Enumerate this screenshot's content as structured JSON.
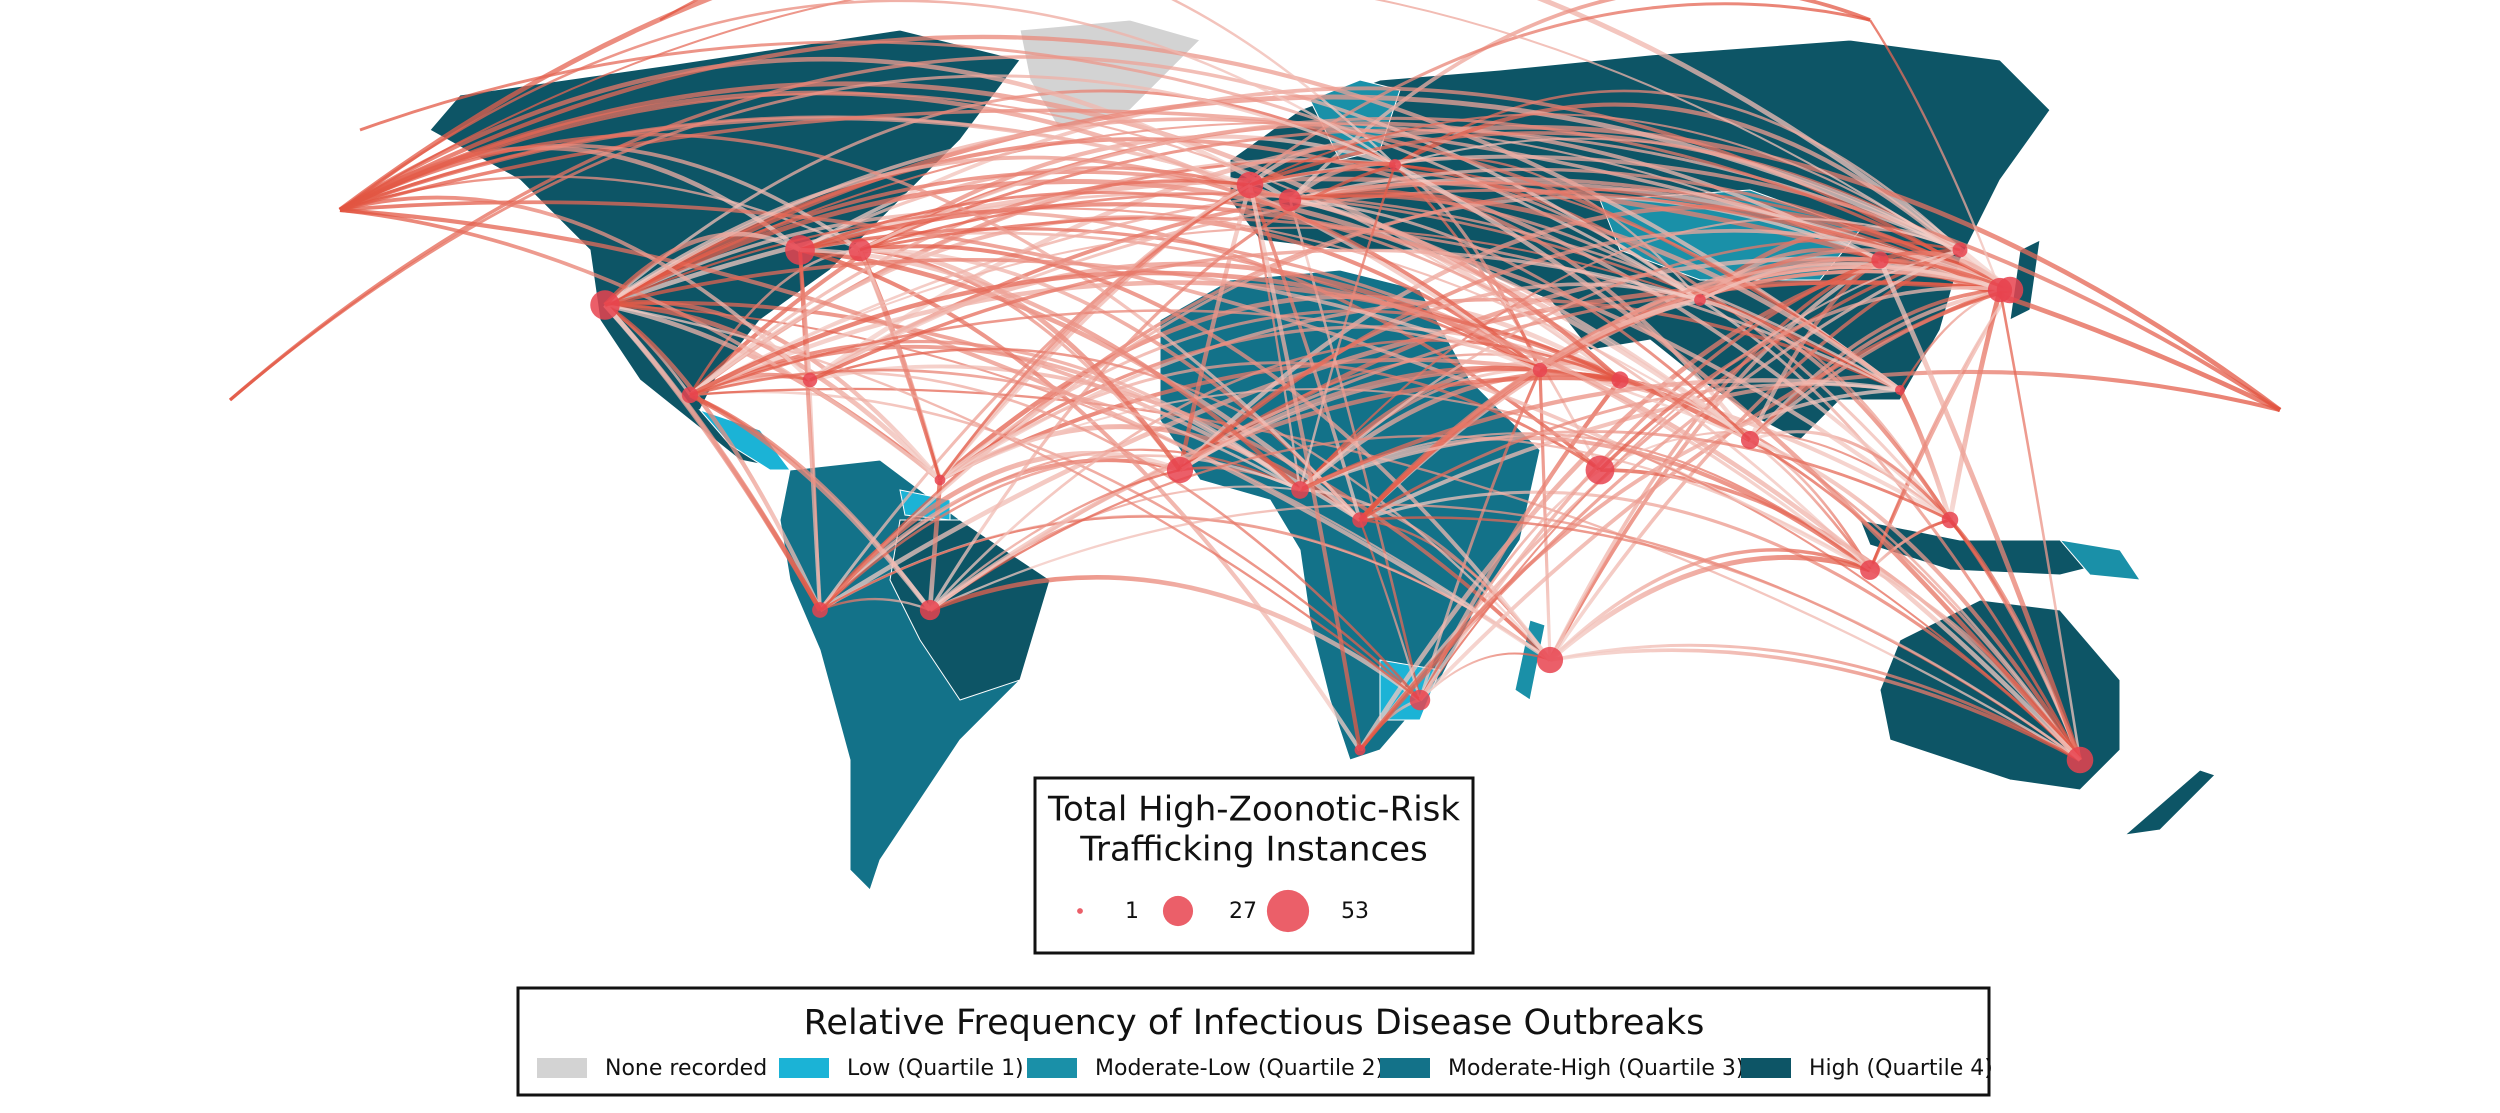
{
  "size_legend": {
    "title_lines": [
      "Total High-Zoonotic-Risk",
      "Trafficking Instances"
    ],
    "items": [
      1,
      27,
      53
    ],
    "color": "#e8434f"
  },
  "color_legend": {
    "title": "Relative Frequency of Infectious Disease Outbreaks",
    "items": [
      {
        "label": "None recorded",
        "color": "#d3d3d3"
      },
      {
        "label": "Low (Quartile 1)",
        "color": "#1bb3d6"
      },
      {
        "label": "Moderate-Low (Quartile 2)",
        "color": "#1a90a8"
      },
      {
        "label": "Moderate-High (Quartile 3)",
        "color": "#137289"
      },
      {
        "label": "High (Quartile 4)",
        "color": "#0d5566"
      }
    ]
  }
}
